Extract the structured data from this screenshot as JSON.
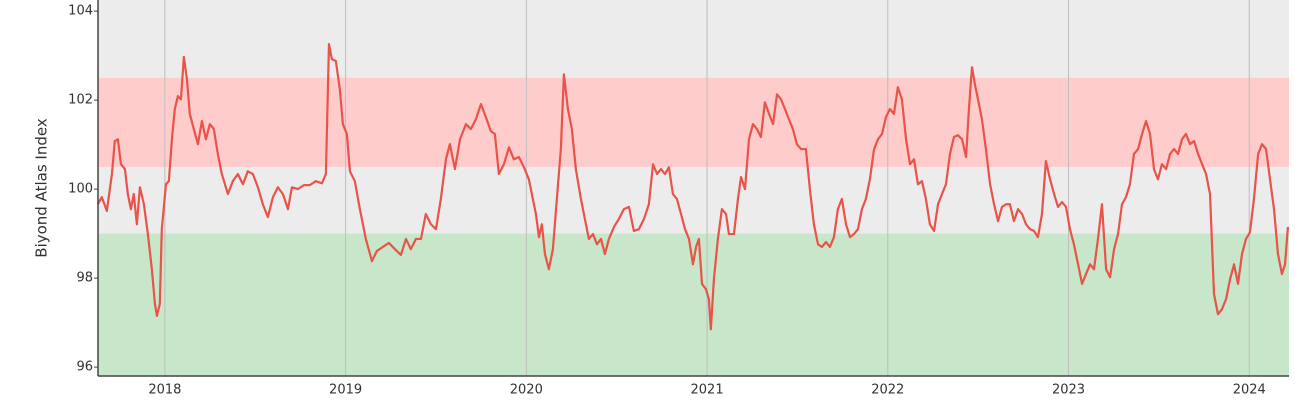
{
  "chart_data": {
    "type": "line",
    "y_label": "Biyond Atlas Index",
    "xlim": [
      2017.63,
      2024.22
    ],
    "xticks": [
      2018,
      2019,
      2020,
      2021,
      2022,
      2023,
      2024
    ],
    "ylim": [
      95.8,
      104.25
    ],
    "yticks": [
      96,
      98,
      100,
      102,
      104
    ],
    "grid": true,
    "bands": [
      {
        "from": 100.5,
        "to": 102.5,
        "color": "#ffcccc"
      },
      {
        "from": 95.8,
        "to": 99,
        "color": "#c8e6c9"
      }
    ],
    "series": [
      {
        "color": "#e8534a",
        "x": [
          2017.629,
          2017.651,
          2017.679,
          2017.707,
          2017.723,
          2017.74,
          2017.757,
          2017.779,
          2017.795,
          2017.812,
          2017.828,
          2017.845,
          2017.862,
          2017.884,
          2017.906,
          2017.928,
          2017.945,
          2017.956,
          2017.972,
          2017.983,
          2018.006,
          2018.022,
          2018.039,
          2018.055,
          2018.072,
          2018.089,
          2018.105,
          2018.122,
          2018.138,
          2018.16,
          2018.183,
          2018.205,
          2018.227,
          2018.249,
          2018.271,
          2018.293,
          2018.315,
          2018.349,
          2018.376,
          2018.404,
          2018.432,
          2018.459,
          2018.487,
          2018.515,
          2018.542,
          2018.57,
          2018.598,
          2018.625,
          2018.653,
          2018.681,
          2018.703,
          2018.736,
          2018.769,
          2018.802,
          2018.836,
          2018.869,
          2018.891,
          2018.908,
          2018.924,
          2018.946,
          2018.968,
          2018.985,
          2019.007,
          2019.024,
          2019.051,
          2019.079,
          2019.112,
          2019.146,
          2019.173,
          2019.206,
          2019.24,
          2019.273,
          2019.306,
          2019.334,
          2019.361,
          2019.389,
          2019.417,
          2019.444,
          2019.472,
          2019.5,
          2019.527,
          2019.555,
          2019.577,
          2019.605,
          2019.633,
          2019.666,
          2019.693,
          2019.721,
          2019.749,
          2019.776,
          2019.804,
          2019.826,
          2019.848,
          2019.876,
          2019.904,
          2019.931,
          2019.959,
          2019.987,
          2020.014,
          2020.036,
          2020.053,
          2020.07,
          2020.086,
          2020.103,
          2020.125,
          2020.147,
          2020.169,
          2020.191,
          2020.208,
          2020.23,
          2020.252,
          2020.274,
          2020.302,
          2020.324,
          2020.346,
          2020.369,
          2020.391,
          2020.413,
          2020.435,
          2020.457,
          2020.485,
          2020.512,
          2020.54,
          2020.568,
          2020.595,
          2020.623,
          2020.651,
          2020.678,
          2020.701,
          2020.723,
          2020.745,
          2020.767,
          2020.789,
          2020.811,
          2020.833,
          2020.856,
          2020.878,
          2020.9,
          2020.922,
          2020.939,
          2020.955,
          2020.972,
          2020.994,
          2021.01,
          2021.021,
          2021.038,
          2021.06,
          2021.082,
          2021.105,
          2021.121,
          2021.149,
          2021.171,
          2021.188,
          2021.21,
          2021.232,
          2021.254,
          2021.276,
          2021.298,
          2021.32,
          2021.343,
          2021.365,
          2021.387,
          2021.409,
          2021.431,
          2021.453,
          2021.475,
          2021.497,
          2021.52,
          2021.547,
          2021.569,
          2021.591,
          2021.614,
          2021.636,
          2021.658,
          2021.68,
          2021.702,
          2021.724,
          2021.746,
          2021.769,
          2021.791,
          2021.813,
          2021.835,
          2021.857,
          2021.879,
          2021.901,
          2021.924,
          2021.946,
          2021.968,
          2021.99,
          2022.012,
          2022.034,
          2022.056,
          2022.078,
          2022.101,
          2022.123,
          2022.145,
          2022.167,
          2022.189,
          2022.211,
          2022.233,
          2022.256,
          2022.278,
          2022.3,
          2022.322,
          2022.344,
          2022.366,
          2022.388,
          2022.411,
          2022.433,
          2022.449,
          2022.466,
          2022.482,
          2022.499,
          2022.521,
          2022.543,
          2022.566,
          2022.588,
          2022.61,
          2022.632,
          2022.654,
          2022.676,
          2022.698,
          2022.721,
          2022.743,
          2022.765,
          2022.787,
          2022.809,
          2022.831,
          2022.853,
          2022.875,
          2022.898,
          2022.92,
          2022.942,
          2022.964,
          2022.986,
          2023.008,
          2023.03,
          2023.053,
          2023.075,
          2023.097,
          2023.119,
          2023.141,
          2023.163,
          2023.185,
          2023.208,
          2023.23,
          2023.252,
          2023.274,
          2023.296,
          2023.318,
          2023.34,
          2023.362,
          2023.385,
          2023.407,
          2023.429,
          2023.451,
          2023.473,
          2023.495,
          2023.517,
          2023.54,
          2023.562,
          2023.584,
          2023.606,
          2023.628,
          2023.65,
          2023.672,
          2023.695,
          2023.717,
          2023.739,
          2023.761,
          2023.783,
          2023.805,
          2023.827,
          2023.849,
          2023.872,
          2023.894,
          2023.916,
          2023.938,
          2023.96,
          2023.982,
          2024.004,
          2024.026,
          2024.049,
          2024.071,
          2024.093,
          2024.115,
          2024.137,
          2024.159,
          2024.181,
          2024.198,
          2024.214
        ],
        "values": [
          99.66,
          99.82,
          99.51,
          100.34,
          101.08,
          101.12,
          100.56,
          100.45,
          99.89,
          99.55,
          99.89,
          99.21,
          100.04,
          99.66,
          98.99,
          98.2,
          97.42,
          97.15,
          97.42,
          99.1,
          100.11,
          100.18,
          101.12,
          101.8,
          102.09,
          102.02,
          102.97,
          102.47,
          101.69,
          101.35,
          101.01,
          101.53,
          101.12,
          101.46,
          101.35,
          100.79,
          100.34,
          99.89,
          100.18,
          100.34,
          100.11,
          100.4,
          100.34,
          100.04,
          99.66,
          99.37,
          99.82,
          100.04,
          99.89,
          99.55,
          100.04,
          100.0,
          100.09,
          100.09,
          100.18,
          100.13,
          100.34,
          103.26,
          102.92,
          102.88,
          102.25,
          101.46,
          101.24,
          100.4,
          100.18,
          99.55,
          98.88,
          98.38,
          98.61,
          98.7,
          98.79,
          98.65,
          98.52,
          98.88,
          98.65,
          98.88,
          98.88,
          99.44,
          99.21,
          99.1,
          99.78,
          100.67,
          101.01,
          100.45,
          101.12,
          101.46,
          101.35,
          101.57,
          101.91,
          101.62,
          101.3,
          101.24,
          100.34,
          100.56,
          100.94,
          100.67,
          100.72,
          100.49,
          100.22,
          99.78,
          99.44,
          98.92,
          99.21,
          98.54,
          98.2,
          98.65,
          99.78,
          100.9,
          102.58,
          101.8,
          101.35,
          100.45,
          99.78,
          99.33,
          98.88,
          98.99,
          98.76,
          98.88,
          98.54,
          98.88,
          99.15,
          99.33,
          99.55,
          99.6,
          99.06,
          99.1,
          99.33,
          99.66,
          100.56,
          100.34,
          100.45,
          100.34,
          100.49,
          99.89,
          99.78,
          99.44,
          99.1,
          98.88,
          98.31,
          98.7,
          98.88,
          97.87,
          97.75,
          97.53,
          96.85,
          97.98,
          98.88,
          99.55,
          99.44,
          98.99,
          98.99,
          99.78,
          100.27,
          100.0,
          101.12,
          101.46,
          101.35,
          101.17,
          101.95,
          101.69,
          101.46,
          102.13,
          102.02,
          101.8,
          101.57,
          101.35,
          101.01,
          100.9,
          100.9,
          100.0,
          99.21,
          98.76,
          98.7,
          98.81,
          98.7,
          98.92,
          99.55,
          99.78,
          99.21,
          98.92,
          98.99,
          99.1,
          99.55,
          99.78,
          100.22,
          100.9,
          101.12,
          101.24,
          101.62,
          101.8,
          101.69,
          102.29,
          102.02,
          101.12,
          100.56,
          100.67,
          100.11,
          100.18,
          99.78,
          99.21,
          99.06,
          99.66,
          99.89,
          100.11,
          100.79,
          101.17,
          101.21,
          101.12,
          100.72,
          101.8,
          102.74,
          102.36,
          102.02,
          101.57,
          100.9,
          100.11,
          99.66,
          99.28,
          99.6,
          99.66,
          99.66,
          99.28,
          99.55,
          99.44,
          99.21,
          99.1,
          99.06,
          98.92,
          99.44,
          100.63,
          100.22,
          99.89,
          99.6,
          99.71,
          99.6,
          99.1,
          98.76,
          98.31,
          97.87,
          98.09,
          98.31,
          98.2,
          98.88,
          99.66,
          98.2,
          98.02,
          98.65,
          98.99,
          99.66,
          99.82,
          100.11,
          100.79,
          100.9,
          101.24,
          101.53,
          101.24,
          100.45,
          100.22,
          100.56,
          100.45,
          100.79,
          100.9,
          100.79,
          101.12,
          101.24,
          101.01,
          101.08,
          100.79,
          100.56,
          100.34,
          99.89,
          97.64,
          97.19,
          97.3,
          97.53,
          97.98,
          98.31,
          97.87,
          98.54,
          98.88,
          99.03,
          99.78,
          100.79,
          101.01,
          100.9,
          100.22,
          99.55,
          98.54,
          98.09,
          98.31,
          99.15
        ]
      }
    ]
  }
}
